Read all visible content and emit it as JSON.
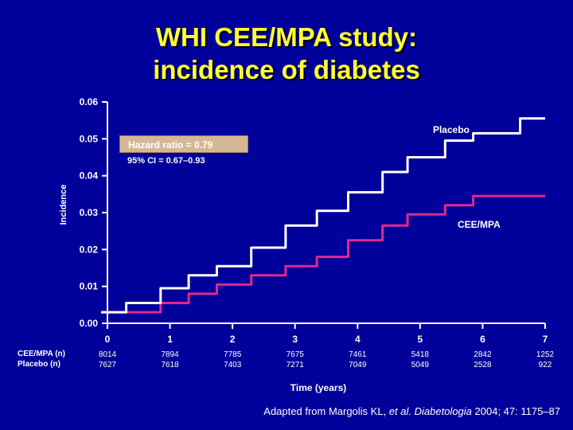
{
  "title": {
    "line1": "WHI CEE/MPA study:",
    "line2": "incidence of diabetes"
  },
  "colors": {
    "background": "#00009a",
    "title": "#ffff33",
    "placebo": "#ffffff",
    "cee_mpa": "#e0288c",
    "axis": "#ffffff",
    "hr_box": "#d4b896"
  },
  "chart_data": {
    "type": "line",
    "title": "WHI CEE/MPA study: incidence of diabetes",
    "xlabel": "Time (years)",
    "ylabel": "Incidence",
    "xlim": [
      0,
      7
    ],
    "ylim": [
      0,
      0.06
    ],
    "xticks": [
      "0",
      "1",
      "2",
      "3",
      "4",
      "5",
      "6",
      "7"
    ],
    "yticks": [
      "0.00",
      "0.01",
      "0.02",
      "0.03",
      "0.04",
      "0.05",
      "0.06"
    ],
    "grid": false,
    "legend": "inline-labels",
    "series": [
      {
        "name": "Placebo",
        "color": "#ffffff",
        "points": [
          [
            -0.1,
            0.003
          ],
          [
            0.3,
            0.003
          ],
          [
            0.3,
            0.0055
          ],
          [
            0.85,
            0.0055
          ],
          [
            0.85,
            0.0095
          ],
          [
            1.3,
            0.0095
          ],
          [
            1.3,
            0.013
          ],
          [
            1.75,
            0.013
          ],
          [
            1.75,
            0.0155
          ],
          [
            2.3,
            0.0155
          ],
          [
            2.3,
            0.0205
          ],
          [
            2.85,
            0.0205
          ],
          [
            2.85,
            0.0265
          ],
          [
            3.35,
            0.0265
          ],
          [
            3.35,
            0.0305
          ],
          [
            3.85,
            0.0305
          ],
          [
            3.85,
            0.0355
          ],
          [
            4.4,
            0.0355
          ],
          [
            4.4,
            0.041
          ],
          [
            4.8,
            0.041
          ],
          [
            4.8,
            0.045
          ],
          [
            5.4,
            0.045
          ],
          [
            5.4,
            0.0495
          ],
          [
            5.85,
            0.0495
          ],
          [
            5.85,
            0.0515
          ],
          [
            6.6,
            0.0515
          ],
          [
            6.6,
            0.0555
          ],
          [
            7.0,
            0.0555
          ]
        ]
      },
      {
        "name": "CEE/MPA",
        "color": "#e0288c",
        "points": [
          [
            -0.1,
            0.003
          ],
          [
            0.85,
            0.003
          ],
          [
            0.85,
            0.0055
          ],
          [
            1.3,
            0.0055
          ],
          [
            1.3,
            0.008
          ],
          [
            1.75,
            0.008
          ],
          [
            1.75,
            0.0105
          ],
          [
            2.3,
            0.0105
          ],
          [
            2.3,
            0.013
          ],
          [
            2.85,
            0.013
          ],
          [
            2.85,
            0.0155
          ],
          [
            3.35,
            0.0155
          ],
          [
            3.35,
            0.018
          ],
          [
            3.85,
            0.018
          ],
          [
            3.85,
            0.0225
          ],
          [
            4.4,
            0.0225
          ],
          [
            4.4,
            0.0265
          ],
          [
            4.8,
            0.0265
          ],
          [
            4.8,
            0.0295
          ],
          [
            5.4,
            0.0295
          ],
          [
            5.4,
            0.032
          ],
          [
            5.85,
            0.032
          ],
          [
            5.85,
            0.0345
          ],
          [
            7.0,
            0.0345
          ]
        ]
      }
    ],
    "series_labels": {
      "placebo": "Placebo",
      "cee_mpa": "CEE/MPA"
    },
    "at_risk": {
      "cee_mpa_label": "CEE/MPA (n)",
      "placebo_label": "Placebo (n)",
      "cee_mpa": [
        "8014",
        "7894",
        "7785",
        "7675",
        "7461",
        "5418",
        "2842",
        "1252"
      ],
      "placebo": [
        "7627",
        "7618",
        "7403",
        "7271",
        "7049",
        "5049",
        "2528",
        "922"
      ]
    },
    "annotations": {
      "hazard_ratio": "Hazard ratio = 0.79",
      "ci": "95% CI = 0.67–0.93"
    }
  },
  "citation": {
    "prefix": "Adapted from Margolis KL, ",
    "etal": "et al.",
    "middle": " ",
    "journal": "Diabetologia",
    "suffix": " 2004; 47: 1175–87"
  }
}
